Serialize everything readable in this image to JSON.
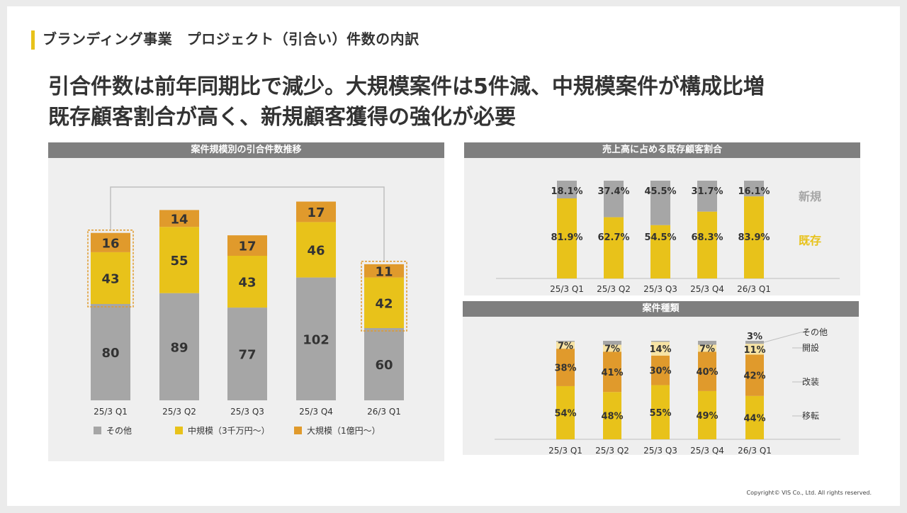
{
  "header": {
    "section_title": "ブランディング事業　プロジェクト（引合い）件数の内訳",
    "headline_line1": "引合件数は前年同期比で減少。大規模案件は5件減、中規模案件が構成比増",
    "headline_line2": "既存顧客割合が高く、新規顧客獲得の強化が必要"
  },
  "colors": {
    "gray": "#a6a6a6",
    "yellow": "#e8c21a",
    "orange": "#e09a2c",
    "light_yellow": "#f7e3a3",
    "header_gray": "#7f7f7f",
    "panel_bg": "#efefef",
    "highlight_border": "#e09a2c"
  },
  "chart_data": [
    {
      "type": "bar",
      "title": "案件規模別の引合件数推移",
      "stacked": true,
      "categories": [
        "25/3 Q1",
        "25/3 Q2",
        "25/3 Q3",
        "25/3 Q4",
        "26/3 Q1"
      ],
      "series": [
        {
          "name": "その他",
          "values": [
            80,
            89,
            77,
            102,
            60
          ],
          "color": "#a6a6a6"
        },
        {
          "name": "中規模（3千万円～）",
          "values": [
            43,
            55,
            43,
            46,
            42
          ],
          "color": "#e8c21a"
        },
        {
          "name": "大規模（1億円～）",
          "values": [
            16,
            14,
            17,
            17,
            11
          ],
          "color": "#e09a2c"
        }
      ],
      "highlighted_categories": [
        "25/3 Q1",
        "26/3 Q1"
      ],
      "legend_position": "bottom",
      "ylim": [
        0,
        175
      ],
      "grid": false
    },
    {
      "type": "bar",
      "title": "売上高に占める既存顧客割合",
      "stacked": true,
      "percent": true,
      "categories": [
        "25/3 Q1",
        "25/3 Q2",
        "25/3 Q3",
        "25/3 Q4",
        "26/3 Q1"
      ],
      "series": [
        {
          "name": "既存",
          "values": [
            81.9,
            62.7,
            54.5,
            68.3,
            83.9
          ],
          "color": "#e8c21a"
        },
        {
          "name": "新規",
          "values": [
            18.1,
            37.4,
            45.5,
            31.7,
            16.1
          ],
          "color": "#a6a6a6"
        }
      ],
      "labels": {
        "既存": [
          "81.9%",
          "62.7%",
          "54.5%",
          "68.3%",
          "83.9%"
        ],
        "新規": [
          "18.1%",
          "37.4%",
          "45.5%",
          "31.7%",
          "16.1%"
        ]
      },
      "legend_position": "right",
      "ylim": [
        0,
        100
      ],
      "grid": false
    },
    {
      "type": "bar",
      "title": "案件種類",
      "stacked": true,
      "percent": true,
      "categories": [
        "25/3 Q1",
        "25/3 Q2",
        "25/3 Q3",
        "25/3 Q4",
        "26/3 Q1"
      ],
      "series": [
        {
          "name": "移転",
          "values": [
            54,
            48,
            55,
            49,
            44
          ],
          "color": "#e8c21a"
        },
        {
          "name": "改装",
          "values": [
            38,
            41,
            30,
            40,
            42
          ],
          "color": "#e09a2c"
        },
        {
          "name": "開設",
          "values": [
            7,
            7,
            14,
            7,
            11
          ],
          "color": "#f7e3a3"
        },
        {
          "name": "その他",
          "values": [
            1,
            4,
            1,
            4,
            3
          ],
          "color": "#a6a6a6"
        }
      ],
      "labels": {
        "移転": [
          "54%",
          "48%",
          "55%",
          "49%",
          "44%"
        ],
        "改装": [
          "38%",
          "41%",
          "30%",
          "40%",
          "42%"
        ],
        "開設": [
          "7%",
          "7%",
          "14%",
          "7%",
          "11%"
        ],
        "その他": [
          "",
          "",
          "",
          "",
          "3%"
        ]
      },
      "legend_position": "right",
      "ylim": [
        0,
        100
      ],
      "grid": false
    }
  ],
  "footer": {
    "copyright": "Copyright© VIS Co., Ltd. All rights reserved."
  }
}
